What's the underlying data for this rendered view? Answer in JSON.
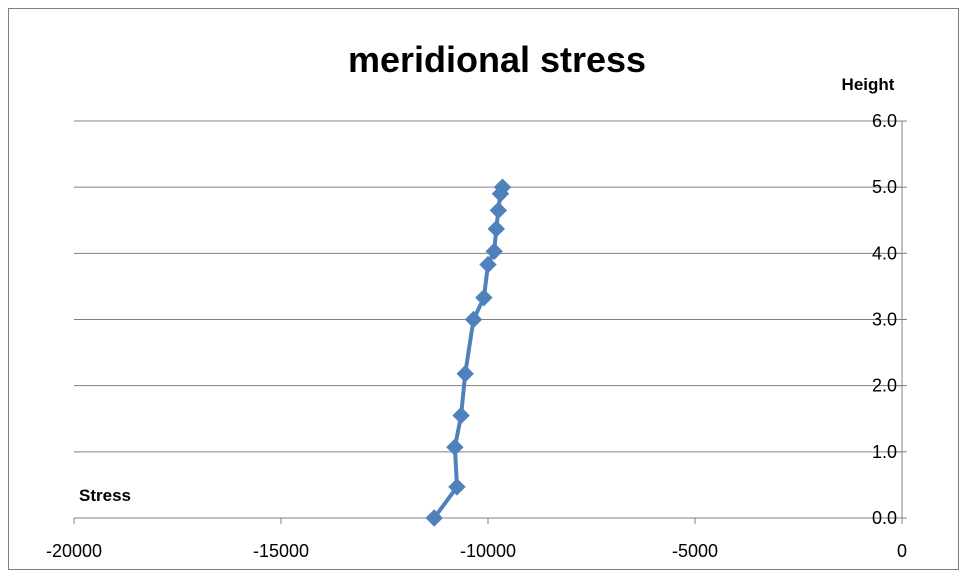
{
  "chart_data": {
    "type": "line",
    "title": "meridional stress",
    "xlabel": "Stress",
    "ylabel": "Height",
    "xlim": [
      -20000,
      0
    ],
    "ylim": [
      0.0,
      6.0
    ],
    "x_ticks": [
      "-20000",
      "-15000",
      "-10000",
      "-5000",
      "0"
    ],
    "y_ticks": [
      "0.0",
      "1.0",
      "2.0",
      "3.0",
      "4.0",
      "5.0",
      "6.0"
    ],
    "grid": true,
    "legend": "none",
    "color": "#4f81bd",
    "series": [
      {
        "x": [
          -11300,
          -10750,
          -10800,
          -10650,
          -10550,
          -10350,
          -10100,
          -10000,
          -9850,
          -9800,
          -9750,
          -9700,
          -9650
        ],
        "y": [
          0.0,
          0.47,
          1.07,
          1.55,
          2.18,
          3.0,
          3.33,
          3.83,
          4.03,
          4.37,
          4.65,
          4.9,
          5.0
        ]
      }
    ]
  }
}
